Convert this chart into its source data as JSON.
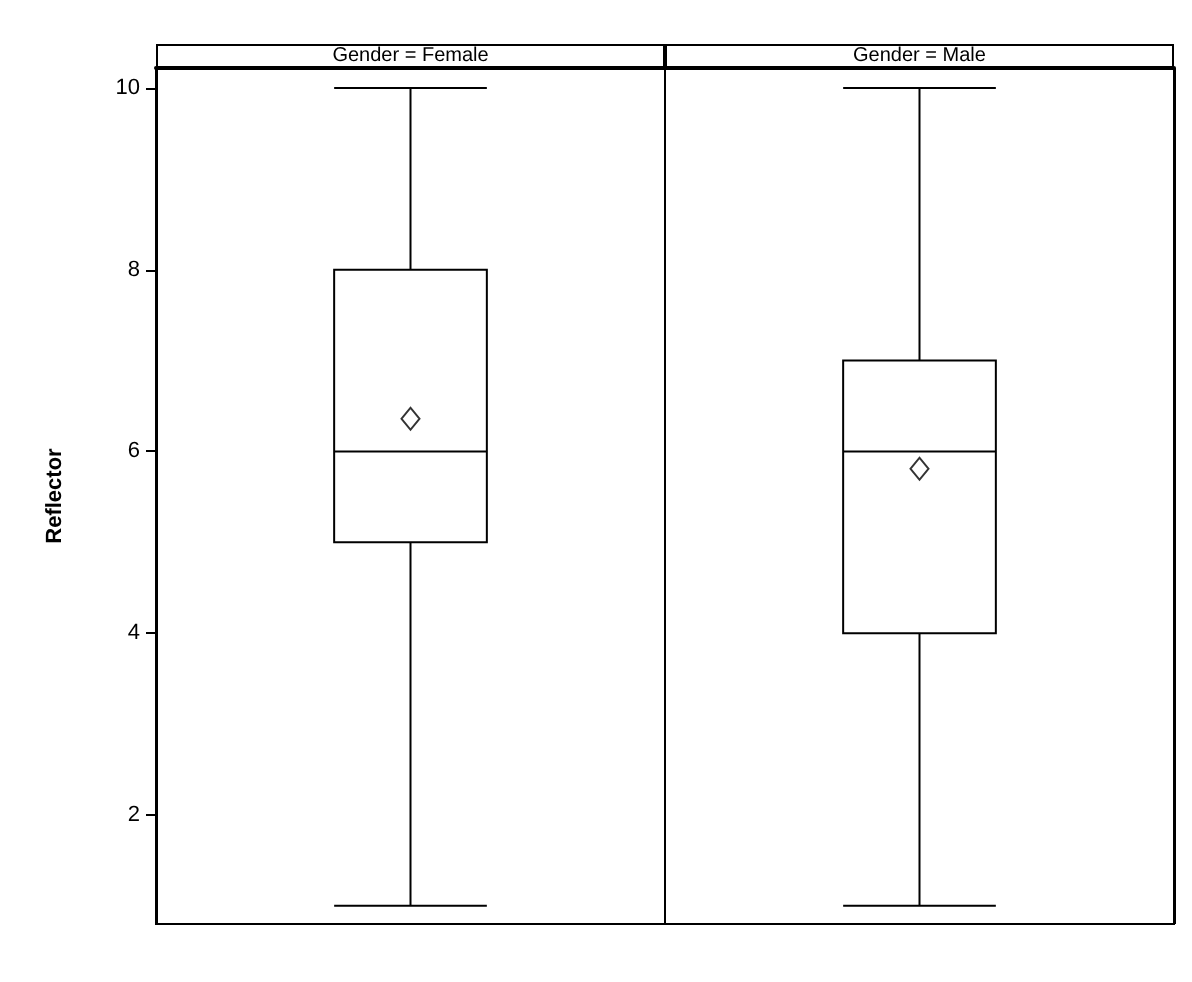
{
  "chart_data": {
    "type": "box",
    "ylabel": "Reflector",
    "categories": [
      "Gender = Female",
      "Gender = Male"
    ],
    "boxes": [
      {
        "low": 1,
        "q1": 5,
        "median": 6,
        "q3": 8,
        "high": 10,
        "mean": 6.36
      },
      {
        "low": 1,
        "q1": 4,
        "median": 6,
        "q3": 7,
        "high": 10,
        "mean": 5.81
      }
    ],
    "ylim": [
      0.8,
      10.22
    ],
    "yticks": [
      2,
      4,
      6,
      8,
      10
    ],
    "grid": false
  }
}
